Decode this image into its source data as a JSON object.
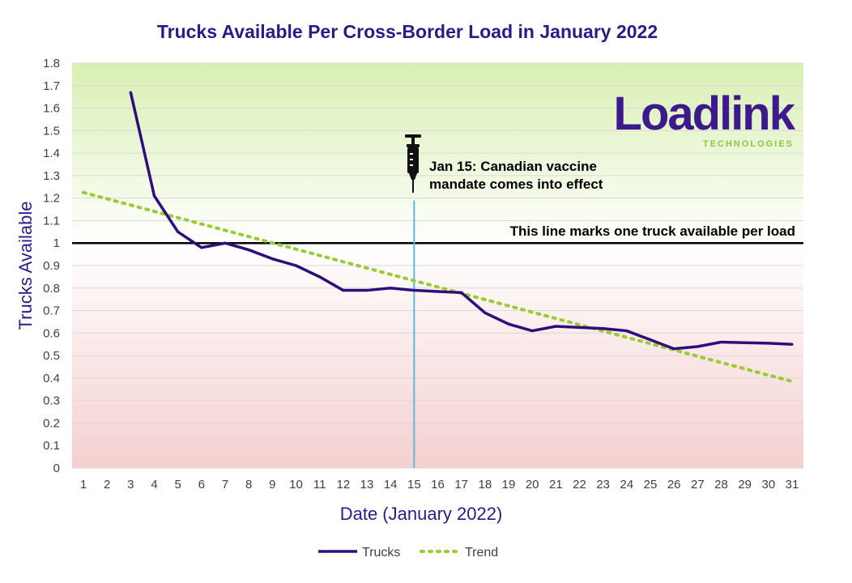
{
  "colors": {
    "title": "#2e1a87",
    "trucks_line": "#2e0f7a",
    "trend_line": "#99cc33",
    "reference_line": "#000000",
    "event_line": "#5bb8e0",
    "bg_top": "#d9efb3",
    "bg_mid": "#ffffff",
    "bg_bottom": "#f5cfcf",
    "logo_primary": "#3c1a8c",
    "logo_accent": "#8cc63f"
  },
  "logo": {
    "name": "Loadlink",
    "subtitle": "TECHNOLOGIES"
  },
  "annotations": {
    "event_text_line1": "Jan 15: Canadian vaccine",
    "event_text_line2": "mandate comes into effect",
    "event_icon": "syringe-icon",
    "reference_text": "This line marks one truck available per load"
  },
  "chart_data": {
    "type": "line",
    "title": "Trucks Available Per Cross-Border Load in January 2022",
    "xlabel": "Date (January 2022)",
    "ylabel": "Trucks Available",
    "x": [
      1,
      2,
      3,
      4,
      5,
      6,
      7,
      8,
      9,
      10,
      11,
      12,
      13,
      14,
      15,
      16,
      17,
      18,
      19,
      20,
      21,
      22,
      23,
      24,
      25,
      26,
      27,
      28,
      29,
      30,
      31
    ],
    "xlim": [
      1,
      31
    ],
    "ylim": [
      0,
      1.8
    ],
    "yticks": [
      0,
      0.1,
      0.2,
      0.3,
      0.4,
      0.5,
      0.6,
      0.7,
      0.8,
      0.9,
      1,
      1.1,
      1.2,
      1.3,
      1.4,
      1.5,
      1.6,
      1.7,
      1.8
    ],
    "ytick_labels": [
      "0",
      "0.1",
      "0.2",
      "0.3",
      "0.4",
      "0.5",
      "0.6",
      "0.7",
      "0.8",
      "0.9",
      "1",
      "1.1",
      "1.2",
      "1.3",
      "1.4",
      "1.5",
      "1.6",
      "1.7",
      "1.8"
    ],
    "grid": true,
    "legend_position": "bottom",
    "series": [
      {
        "name": "Trucks",
        "style": "solid",
        "x": [
          3,
          4,
          5,
          6,
          7,
          8,
          9,
          10,
          11,
          12,
          13,
          14,
          15,
          16,
          17,
          18,
          19,
          20,
          21,
          22,
          23,
          24,
          25,
          26,
          27,
          28,
          29,
          30,
          31
        ],
        "values": [
          1.67,
          1.21,
          1.05,
          0.98,
          1.0,
          0.97,
          0.93,
          0.9,
          0.85,
          0.79,
          0.79,
          0.8,
          0.79,
          0.785,
          0.78,
          0.69,
          0.64,
          0.61,
          0.63,
          0.625,
          0.62,
          0.61,
          0.57,
          0.53,
          0.54,
          0.56,
          0.557,
          0.555,
          0.55
        ]
      },
      {
        "name": "Trend",
        "style": "dotted",
        "x": [
          1,
          31
        ],
        "values": [
          1.225,
          0.385
        ]
      }
    ],
    "reference_line": {
      "y": 1
    },
    "event_line": {
      "x": 15,
      "y_top": 1.19
    }
  }
}
